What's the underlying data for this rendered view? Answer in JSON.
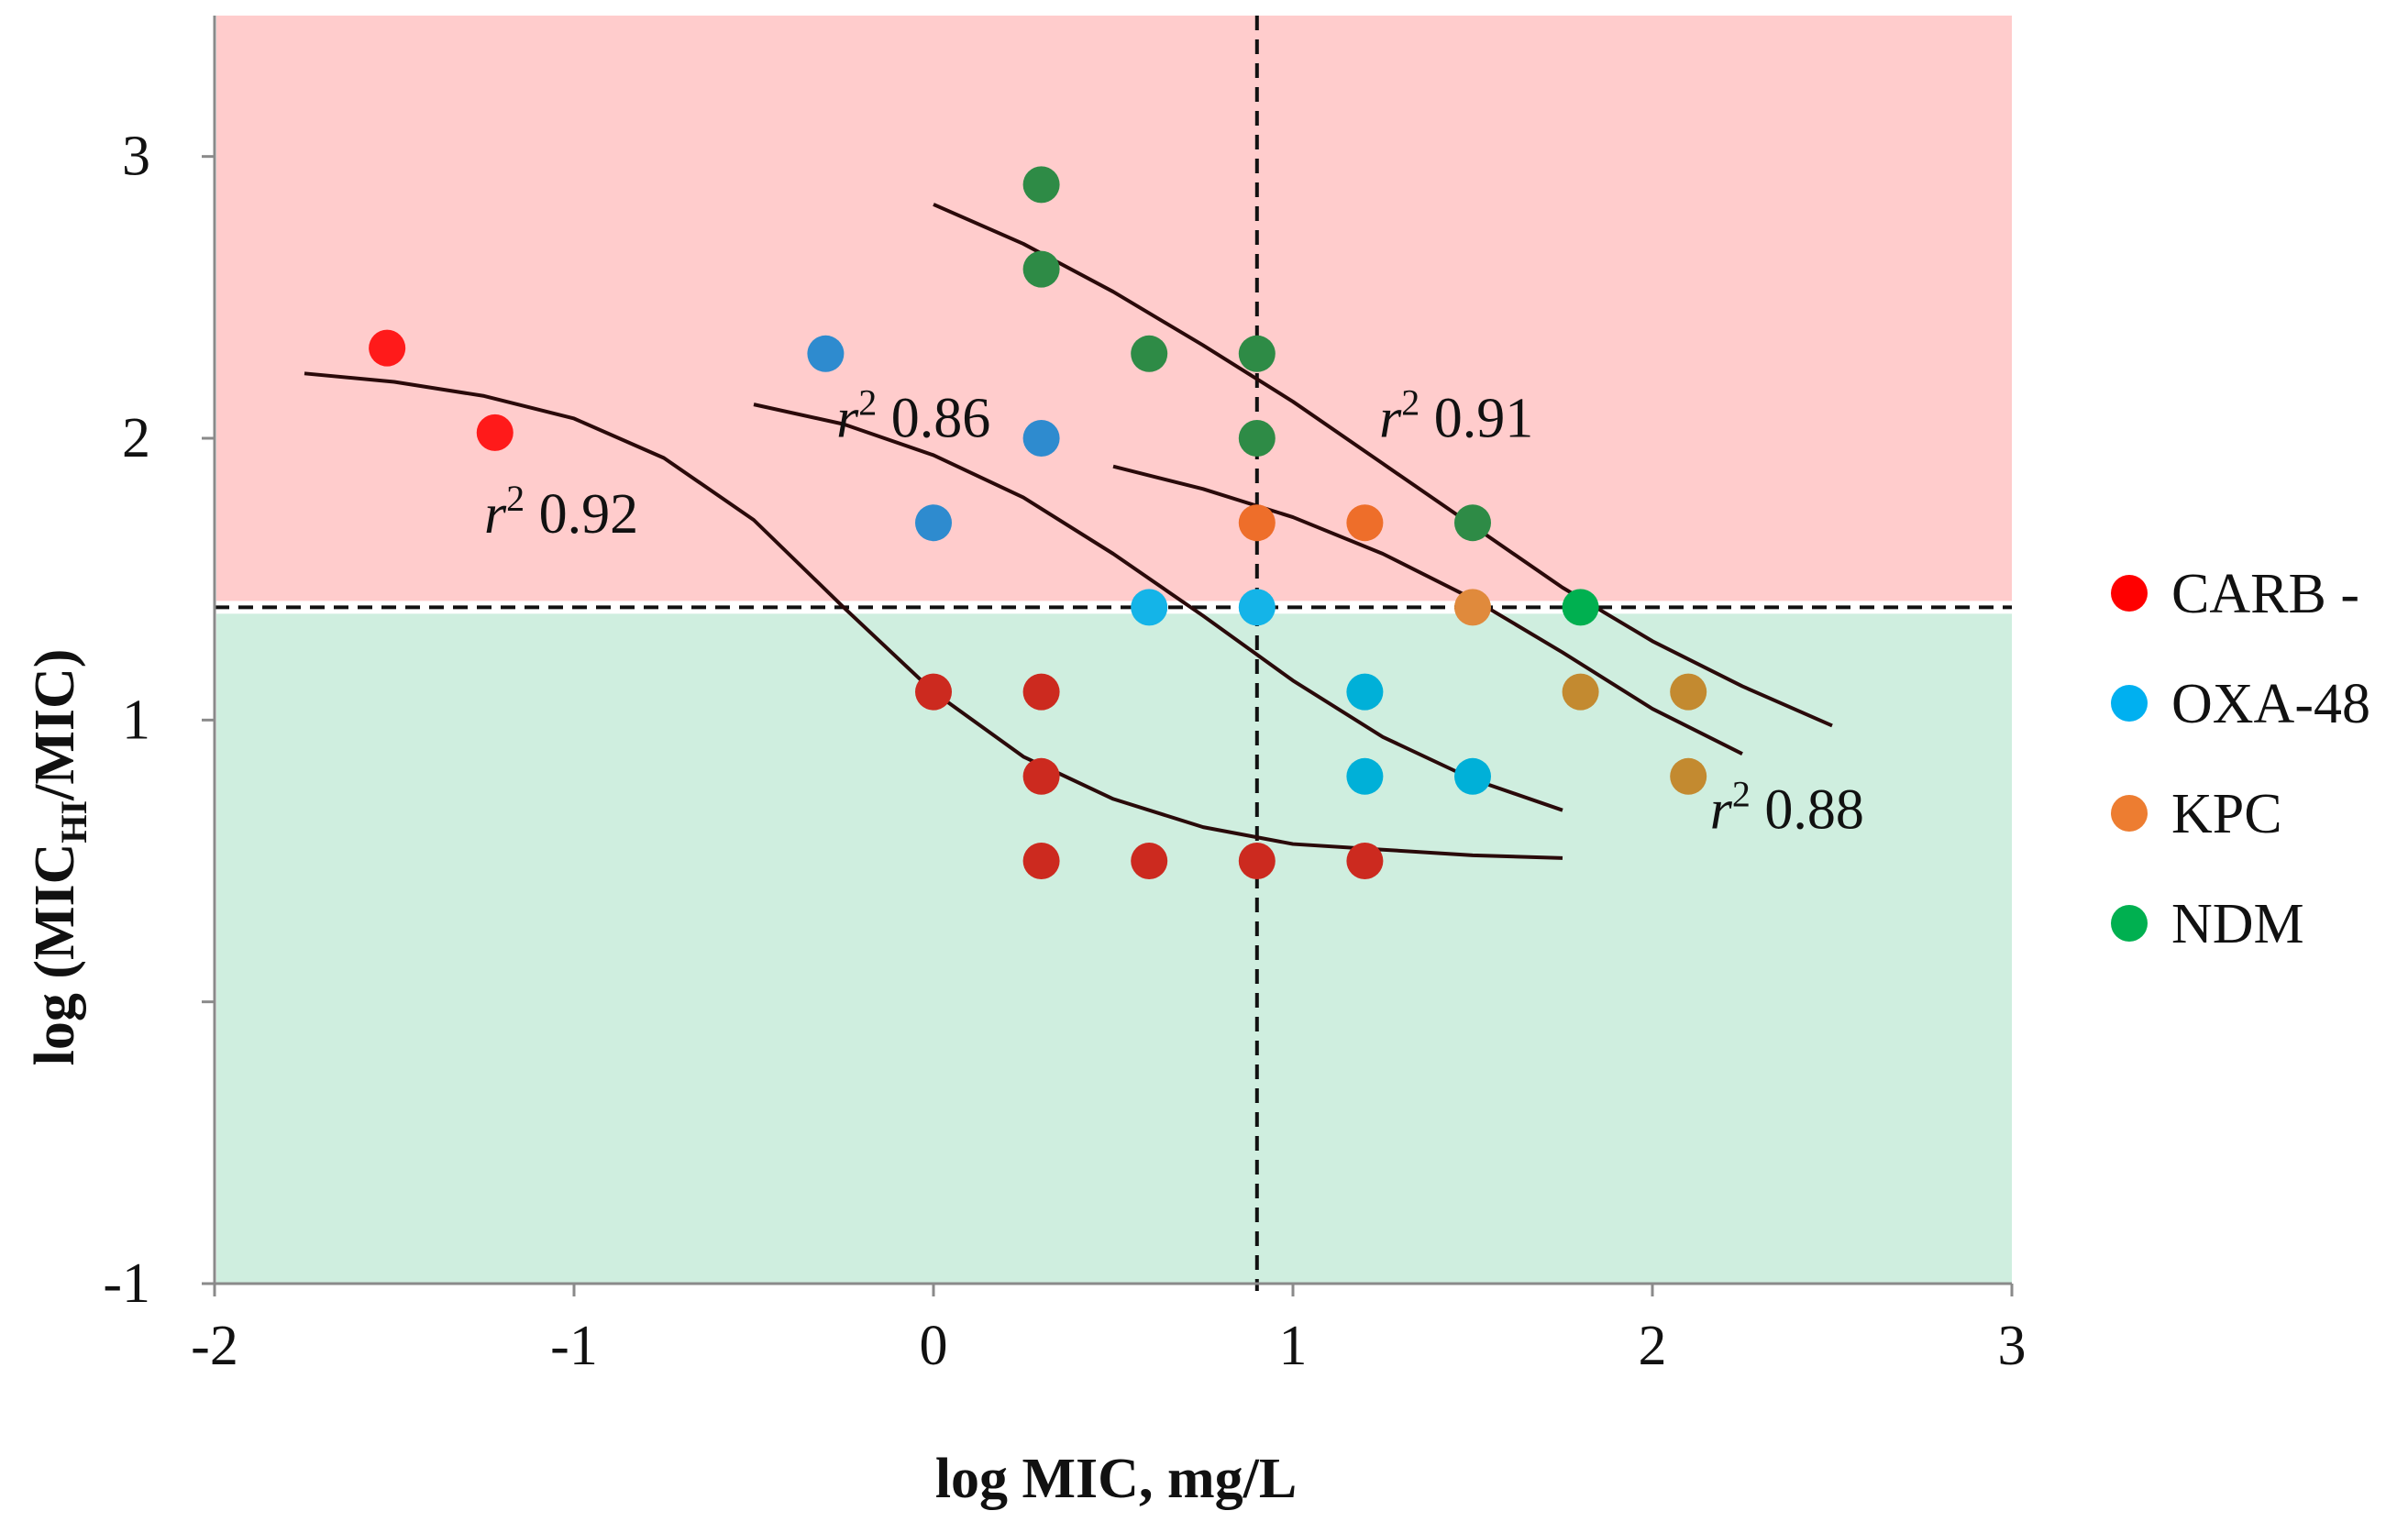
{
  "chart_data": {
    "type": "scatter",
    "xlabel": "log MIC, mg/L",
    "ylabel_main": "log (MIC",
    "ylabel_sub": "HI",
    "ylabel_tail": "/MIC)",
    "xlim": [
      -2,
      3
    ],
    "ylim": [
      -1,
      3.5
    ],
    "xticks": [
      -2,
      -1,
      0,
      1,
      2,
      3
    ],
    "yticks": [
      -1,
      1,
      2,
      3
    ],
    "xtick_labels": [
      "-2",
      "-1",
      "0",
      "1",
      "2",
      "3"
    ],
    "ytick_labels": [
      "-1",
      "1",
      "2",
      "3"
    ],
    "regions": [
      {
        "name": "resistant",
        "y_from": 1.4,
        "y_to": 3.5,
        "color": "#ffcccc"
      },
      {
        "name": "susceptible",
        "y_from": -1,
        "y_to": 1.4,
        "color": "#cfeedf"
      }
    ],
    "reference_lines": {
      "x": 0.9,
      "y": 1.4
    },
    "series": [
      {
        "name": "CARB -",
        "legend_color": "#ff0000",
        "points": [
          {
            "x": -1.52,
            "y": 2.32,
            "color": "#ff1a1a"
          },
          {
            "x": -1.22,
            "y": 2.02,
            "color": "#ff1a1a"
          },
          {
            "x": 0.0,
            "y": 1.1,
            "color": "#cc2a1f"
          },
          {
            "x": 0.3,
            "y": 1.1,
            "color": "#cc2a1f"
          },
          {
            "x": 0.3,
            "y": 0.8,
            "color": "#cc2a1f"
          },
          {
            "x": 0.3,
            "y": 0.5,
            "color": "#cc2a1f"
          },
          {
            "x": 0.6,
            "y": 0.5,
            "color": "#cc2a1f"
          },
          {
            "x": 0.9,
            "y": 0.5,
            "color": "#cc2a1f"
          },
          {
            "x": 1.2,
            "y": 0.5,
            "color": "#cc2a1f"
          }
        ]
      },
      {
        "name": "OXA-48",
        "legend_color": "#00b0f0",
        "points": [
          {
            "x": -0.3,
            "y": 2.3,
            "color": "#2e8bcf"
          },
          {
            "x": 0.3,
            "y": 2.0,
            "color": "#2e8bcf"
          },
          {
            "x": 0.0,
            "y": 1.7,
            "color": "#2e8bcf"
          },
          {
            "x": 0.6,
            "y": 1.4,
            "color": "#14b4e8"
          },
          {
            "x": 0.9,
            "y": 1.4,
            "color": "#14b4e8"
          },
          {
            "x": 1.2,
            "y": 1.1,
            "color": "#00b0d8"
          },
          {
            "x": 1.2,
            "y": 0.8,
            "color": "#00b0d8"
          },
          {
            "x": 1.5,
            "y": 0.8,
            "color": "#00b0d8"
          }
        ]
      },
      {
        "name": "KPC",
        "legend_color": "#ed7d31",
        "points": [
          {
            "x": 0.9,
            "y": 1.7,
            "color": "#ee6e2a"
          },
          {
            "x": 1.2,
            "y": 1.7,
            "color": "#ee6e2a"
          },
          {
            "x": 1.5,
            "y": 1.4,
            "color": "#e08a3c"
          },
          {
            "x": 1.8,
            "y": 1.1,
            "color": "#c38a30"
          },
          {
            "x": 2.1,
            "y": 1.1,
            "color": "#c38a30"
          },
          {
            "x": 2.1,
            "y": 0.8,
            "color": "#c38a30"
          }
        ]
      },
      {
        "name": "NDM",
        "legend_color": "#00b050",
        "points": [
          {
            "x": 0.3,
            "y": 2.9,
            "color": "#2e8b46"
          },
          {
            "x": 0.3,
            "y": 2.6,
            "color": "#2e8b46"
          },
          {
            "x": 0.6,
            "y": 2.3,
            "color": "#2e8b46"
          },
          {
            "x": 0.9,
            "y": 2.3,
            "color": "#2e8b46"
          },
          {
            "x": 0.9,
            "y": 2.0,
            "color": "#2e8b46"
          },
          {
            "x": 1.5,
            "y": 1.7,
            "color": "#2e8b46"
          },
          {
            "x": 1.8,
            "y": 1.4,
            "color": "#00b050"
          }
        ]
      }
    ],
    "fit_lines": [
      {
        "name": "CARB fit",
        "color": "#2a0a0a",
        "points": [
          [
            -1.75,
            2.23
          ],
          [
            -1.5,
            2.2
          ],
          [
            -1.25,
            2.15
          ],
          [
            -1.0,
            2.07
          ],
          [
            -0.75,
            1.93
          ],
          [
            -0.5,
            1.71
          ],
          [
            -0.25,
            1.4
          ],
          [
            0.0,
            1.1
          ],
          [
            0.25,
            0.87
          ],
          [
            0.5,
            0.72
          ],
          [
            0.75,
            0.62
          ],
          [
            1.0,
            0.56
          ],
          [
            1.25,
            0.54
          ],
          [
            1.5,
            0.52
          ],
          [
            1.75,
            0.51
          ]
        ]
      },
      {
        "name": "OXA-48 fit",
        "color": "#2a0a0a",
        "points": [
          [
            -0.5,
            2.12
          ],
          [
            -0.25,
            2.05
          ],
          [
            0.0,
            1.94
          ],
          [
            0.25,
            1.79
          ],
          [
            0.5,
            1.59
          ],
          [
            0.75,
            1.37
          ],
          [
            1.0,
            1.14
          ],
          [
            1.25,
            0.94
          ],
          [
            1.5,
            0.79
          ],
          [
            1.75,
            0.68
          ]
        ]
      },
      {
        "name": "KPC fit",
        "color": "#2a0a0a",
        "points": [
          [
            0.5,
            1.9
          ],
          [
            0.75,
            1.82
          ],
          [
            1.0,
            1.72
          ],
          [
            1.25,
            1.59
          ],
          [
            1.5,
            1.43
          ],
          [
            1.75,
            1.24
          ],
          [
            2.0,
            1.04
          ],
          [
            2.25,
            0.88
          ]
        ]
      },
      {
        "name": "NDM fit",
        "color": "#2a0a0a",
        "points": [
          [
            0.0,
            2.83
          ],
          [
            0.25,
            2.69
          ],
          [
            0.5,
            2.52
          ],
          [
            0.75,
            2.33
          ],
          [
            1.0,
            2.13
          ],
          [
            1.25,
            1.91
          ],
          [
            1.5,
            1.69
          ],
          [
            1.75,
            1.47
          ],
          [
            2.0,
            1.28
          ],
          [
            2.25,
            1.12
          ],
          [
            2.5,
            0.98
          ]
        ]
      }
    ],
    "annotations": [
      {
        "name": "r2-carb",
        "prefix": "r",
        "sup": "2",
        "value": " 0.92",
        "x": -1.25,
        "y": 1.73
      },
      {
        "name": "r2-oxa",
        "prefix": "r",
        "sup": "2",
        "value": " 0.86",
        "x": -0.27,
        "y": 2.07
      },
      {
        "name": "r2-ndm",
        "prefix": "r",
        "sup": "2",
        "value": " 0.91",
        "x": 1.24,
        "y": 2.07
      },
      {
        "name": "r2-kpc",
        "prefix": "r",
        "sup": "2",
        "value": " 0.88",
        "x": 2.16,
        "y": 0.68
      }
    ],
    "legend": {
      "position": "right",
      "entries": [
        {
          "label": "CARB -",
          "color": "#ff0000"
        },
        {
          "label": "OXA-48",
          "color": "#00b0f0"
        },
        {
          "label": "KPC",
          "color": "#ed7d31"
        },
        {
          "label": "NDM",
          "color": "#00b050"
        }
      ]
    }
  }
}
